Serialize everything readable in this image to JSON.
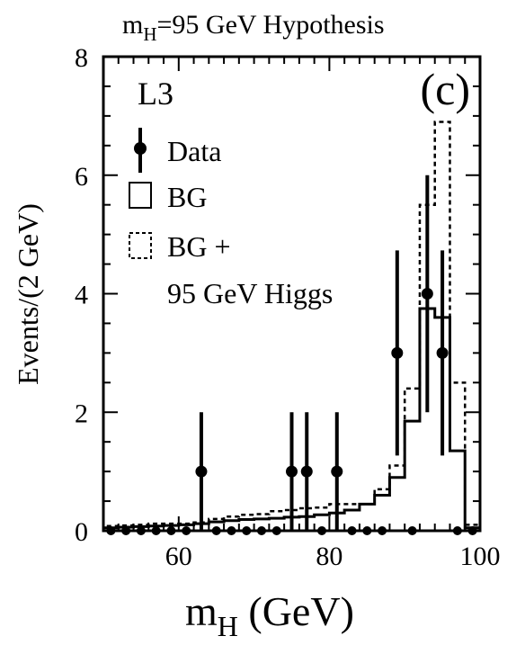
{
  "chart_data": {
    "type": "histogram",
    "title_main": "m",
    "title_sub": "H",
    "title_rest": "=95 GeV Hypothesis",
    "experiment": "L3",
    "panel": "(c)",
    "xlabel_main": "m",
    "xlabel_sub": "H",
    "xlabel_rest": " (GeV)",
    "ylabel": "Events/(2 GeV)",
    "xlim": [
      50,
      100
    ],
    "ylim": [
      0,
      8
    ],
    "xticks": [
      "60",
      "80",
      "100"
    ],
    "yticks": [
      "0",
      "2",
      "4",
      "6",
      "8"
    ],
    "legend": {
      "data": "Data",
      "bg": "BG",
      "bgh_line1": "BG +",
      "bgh_line2": "95 GeV Higgs"
    },
    "bin_edges": [
      50,
      52,
      54,
      56,
      58,
      60,
      62,
      64,
      66,
      68,
      70,
      72,
      74,
      76,
      78,
      80,
      82,
      84,
      86,
      88,
      90,
      92,
      94,
      96,
      98,
      100
    ],
    "series": [
      {
        "name": "BG",
        "style": "solid",
        "values": [
          0.05,
          0.06,
          0.07,
          0.08,
          0.09,
          0.1,
          0.12,
          0.15,
          0.17,
          0.19,
          0.2,
          0.21,
          0.23,
          0.24,
          0.27,
          0.3,
          0.35,
          0.45,
          0.6,
          0.9,
          1.85,
          3.75,
          3.6,
          1.35,
          0.05
        ]
      },
      {
        "name": "BG + 95 GeV Higgs",
        "style": "dashed",
        "values": [
          0.08,
          0.09,
          0.1,
          0.12,
          0.12,
          0.12,
          0.14,
          0.2,
          0.24,
          0.27,
          0.28,
          0.33,
          0.35,
          0.38,
          0.39,
          0.45,
          0.45,
          0.45,
          0.7,
          1.1,
          2.4,
          5.5,
          6.9,
          2.5,
          0.1
        ]
      }
    ],
    "data_points": [
      {
        "x": 63,
        "y": 1,
        "err": 1
      },
      {
        "x": 75,
        "y": 1,
        "err": 1
      },
      {
        "x": 77,
        "y": 1,
        "err": 1
      },
      {
        "x": 81,
        "y": 1,
        "err": 1
      },
      {
        "x": 89,
        "y": 3,
        "err": 1.73
      },
      {
        "x": 93,
        "y": 4,
        "err": 2
      },
      {
        "x": 95,
        "y": 3,
        "err": 1.73
      }
    ],
    "zero_points": [
      51,
      53,
      55,
      57,
      59,
      61,
      65,
      67,
      69,
      71,
      73,
      79,
      83,
      85,
      87,
      91,
      97,
      99
    ]
  }
}
